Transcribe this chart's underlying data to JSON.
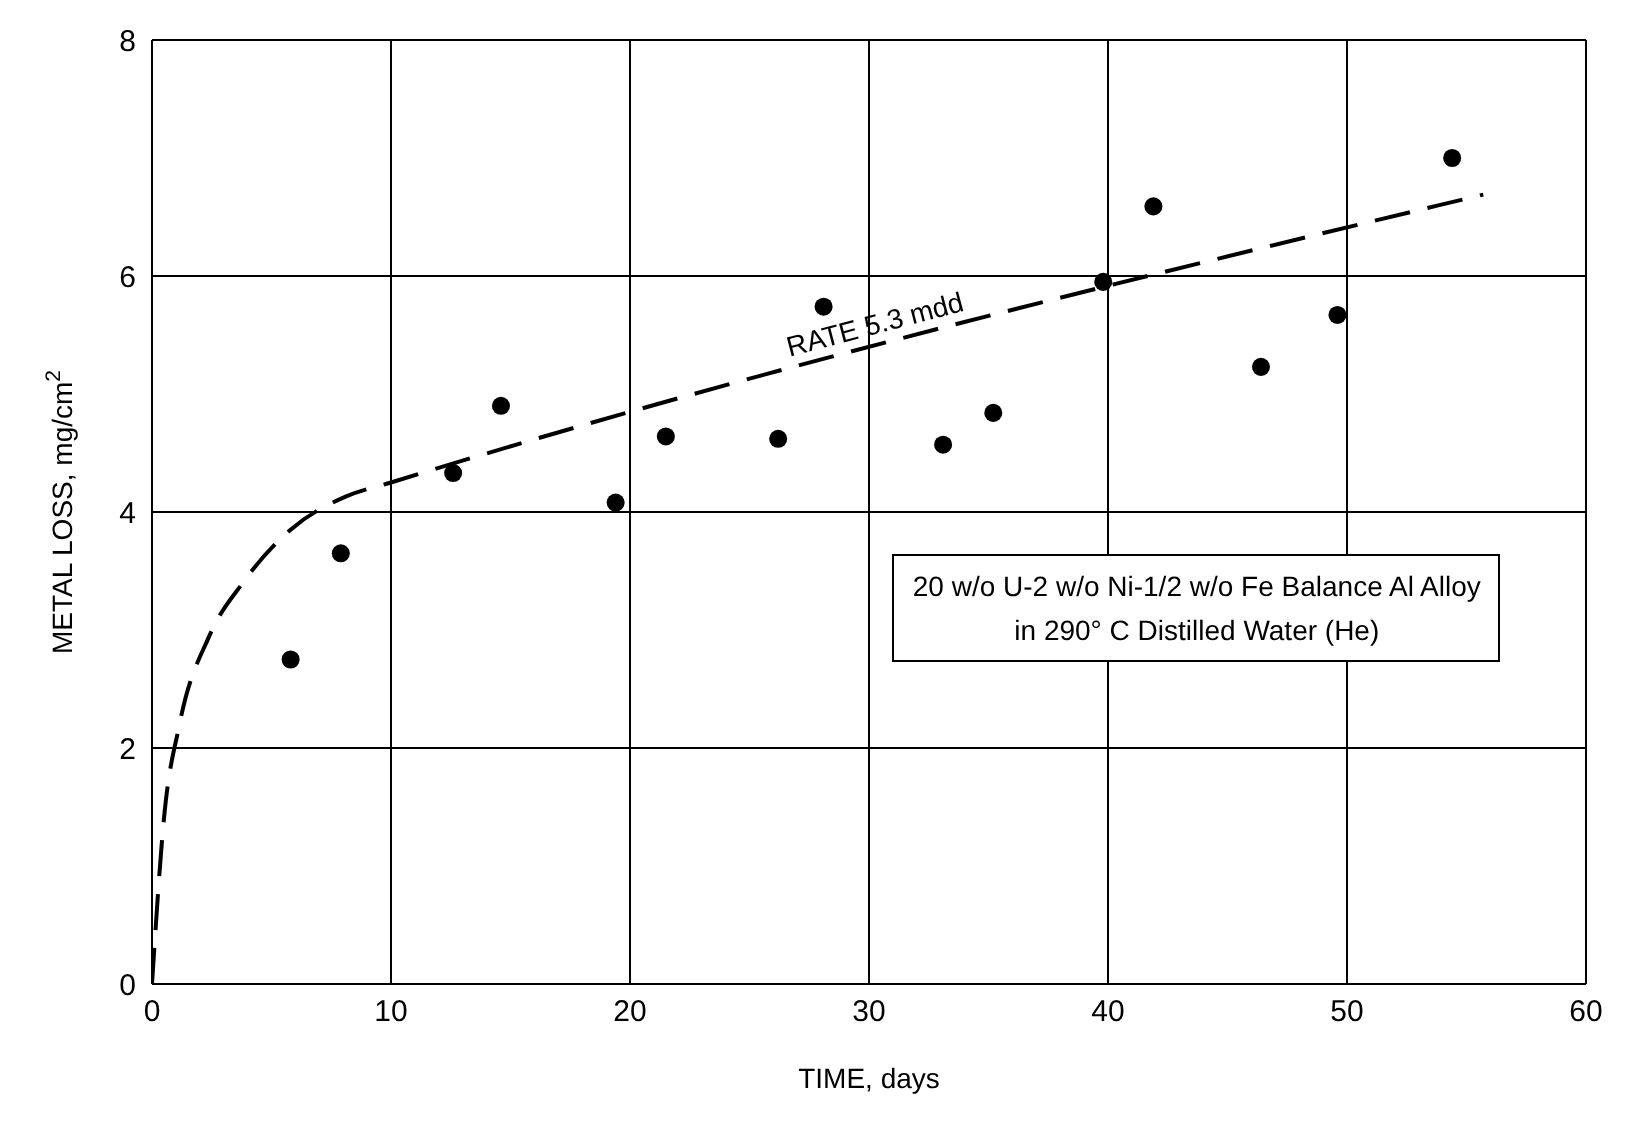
{
  "chart_data": {
    "type": "scatter",
    "xlabel": "TIME, days",
    "ylabel": "METAL LOSS, mg/cm$^{2}$",
    "xlim": [
      0,
      60
    ],
    "xticks": [
      0,
      10,
      20,
      30,
      40,
      50,
      60
    ],
    "ylim": [
      0,
      8
    ],
    "yticks": [
      0,
      2,
      4,
      6,
      8
    ],
    "grid": true,
    "series": [
      {
        "color": "#000000",
        "marker": "circle",
        "x": [
          5.8,
          7.9,
          12.6,
          14.6,
          19.4,
          21.5,
          26.2,
          28.1,
          33.1,
          35.2,
          39.8,
          41.9,
          46.4,
          49.6,
          54.4
        ],
        "values": [
          2.75,
          3.65,
          4.33,
          4.9,
          4.08,
          4.64,
          4.62,
          5.74,
          4.57,
          4.84,
          5.95,
          6.59,
          5.23,
          5.67,
          7.0
        ]
      },
      {
        "type": "line",
        "color": "#000000",
        "marker": "none",
        "line_style": "dashed",
        "x": [
          0,
          0.5,
          1.15,
          2.4,
          3.8,
          5.8,
          8.1,
          10,
          55.7
        ],
        "values": [
          0,
          1.4,
          2.2,
          2.95,
          3.4,
          3.85,
          4.13,
          4.25,
          6.69
        ]
      }
    ],
    "annotations": [
      "RATE 5.3 mdd",
      "20 w/o U-2 w/o Ni-1/2 w/o Fe Balance Al Alloy in 290° C Distilled Water (He)"
    ]
  }
}
